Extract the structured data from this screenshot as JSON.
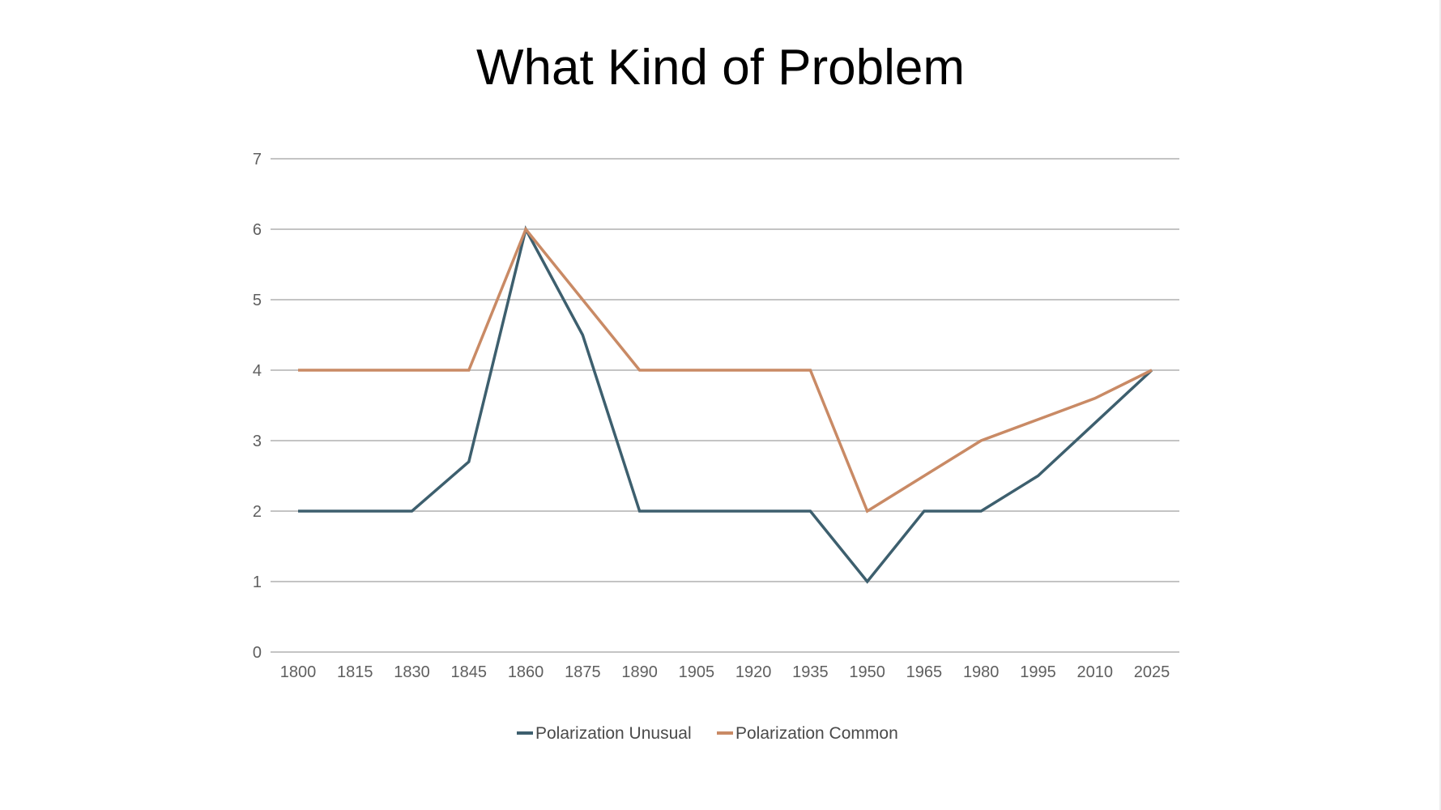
{
  "slide": {
    "title": "What Kind of Problem"
  },
  "chart_data": {
    "type": "line",
    "title": "What Kind of Problem",
    "xlabel": "",
    "ylabel": "",
    "x": [
      "1800",
      "1815",
      "1830",
      "1845",
      "1860",
      "1875",
      "1890",
      "1905",
      "1920",
      "1935",
      "1950",
      "1965",
      "1980",
      "1995",
      "2010",
      "2025"
    ],
    "y_ticks": [
      "0",
      "1",
      "2",
      "3",
      "4",
      "5",
      "6",
      "7"
    ],
    "ylim": [
      0,
      7
    ],
    "grid": true,
    "legend_position": "bottom",
    "series": [
      {
        "name": "Polarization Unusual",
        "color": "#3d5f6e",
        "values": [
          2,
          2,
          2,
          2.7,
          6,
          4.5,
          2,
          2,
          2,
          2,
          1,
          2,
          2,
          2.5,
          3.25,
          4
        ]
      },
      {
        "name": "Polarization Common",
        "color": "#c98a65",
        "values": [
          4,
          4,
          4,
          4,
          6,
          5,
          4,
          4,
          4,
          4,
          2,
          2.5,
          3,
          3.3,
          3.6,
          4
        ]
      }
    ]
  }
}
